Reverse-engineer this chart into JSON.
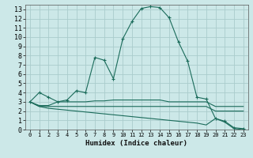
{
  "xlabel": "Humidex (Indice chaleur)",
  "background_color": "#cce8e8",
  "grid_color": "#aacccc",
  "line_color": "#1a6b5a",
  "xlim": [
    -0.5,
    23.5
  ],
  "ylim": [
    0,
    13.5
  ],
  "xticks": [
    0,
    1,
    2,
    3,
    4,
    5,
    6,
    7,
    8,
    9,
    10,
    11,
    12,
    13,
    14,
    15,
    16,
    17,
    18,
    19,
    20,
    21,
    22,
    23
  ],
  "yticks": [
    0,
    1,
    2,
    3,
    4,
    5,
    6,
    7,
    8,
    9,
    10,
    11,
    12,
    13
  ],
  "curves": [
    {
      "x": [
        0,
        1,
        2,
        3,
        4,
        5,
        6,
        7,
        8,
        9,
        10,
        11,
        12,
        13,
        14,
        15,
        16,
        17,
        18,
        19,
        20,
        21,
        22,
        23
      ],
      "y": [
        3.0,
        4.0,
        3.5,
        3.0,
        3.2,
        4.2,
        4.0,
        7.8,
        7.5,
        5.5,
        9.8,
        11.7,
        13.1,
        13.3,
        13.2,
        12.1,
        9.5,
        7.4,
        3.5,
        3.3,
        1.2,
        0.9,
        0.2,
        0.1
      ],
      "marker": "+"
    },
    {
      "x": [
        0,
        1,
        2,
        3,
        4,
        5,
        6,
        7,
        8,
        9,
        10,
        11,
        12,
        13,
        14,
        15,
        16,
        17,
        18,
        19,
        20,
        21,
        22,
        23
      ],
      "y": [
        3.0,
        2.6,
        2.6,
        3.0,
        3.0,
        3.0,
        3.0,
        3.1,
        3.1,
        3.2,
        3.2,
        3.2,
        3.2,
        3.2,
        3.2,
        3.0,
        3.0,
        3.0,
        3.0,
        3.0,
        2.5,
        2.5,
        2.5,
        2.5
      ],
      "marker": null
    },
    {
      "x": [
        0,
        1,
        2,
        3,
        4,
        5,
        6,
        7,
        8,
        9,
        10,
        11,
        12,
        13,
        14,
        15,
        16,
        17,
        18,
        19,
        20,
        21,
        22,
        23
      ],
      "y": [
        3.0,
        2.5,
        2.5,
        2.5,
        2.5,
        2.5,
        2.5,
        2.5,
        2.5,
        2.5,
        2.5,
        2.5,
        2.5,
        2.5,
        2.5,
        2.5,
        2.5,
        2.5,
        2.5,
        2.5,
        2.0,
        2.0,
        2.0,
        2.0
      ],
      "marker": null
    },
    {
      "x": [
        0,
        1,
        2,
        3,
        4,
        5,
        6,
        7,
        8,
        9,
        10,
        11,
        12,
        13,
        14,
        15,
        16,
        17,
        18,
        19,
        20,
        21,
        22,
        23
      ],
      "y": [
        3.0,
        2.5,
        2.3,
        2.2,
        2.1,
        2.0,
        1.9,
        1.8,
        1.7,
        1.6,
        1.5,
        1.4,
        1.3,
        1.2,
        1.1,
        1.0,
        0.9,
        0.8,
        0.7,
        0.5,
        1.2,
        0.8,
        0.1,
        0.0
      ],
      "marker": null
    }
  ]
}
